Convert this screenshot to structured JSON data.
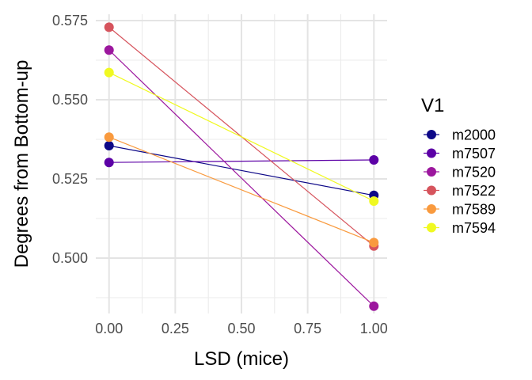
{
  "chart_data": {
    "type": "line",
    "xlabel": "LSD (mice)",
    "ylabel": "Degrees from Bottom-up",
    "x": [
      0,
      1
    ],
    "xticks": [
      0,
      0.25,
      0.5,
      0.75,
      1
    ],
    "xtick_labels": [
      "0.00",
      "0.25",
      "0.50",
      "0.75",
      "1.00"
    ],
    "yticks": [
      0.5,
      0.525,
      0.55,
      0.575
    ],
    "ytick_labels": [
      "0.500",
      "0.525",
      "0.550",
      "0.575"
    ],
    "xlim": [
      -0.05,
      1.05
    ],
    "ylim": [
      0.4825,
      0.577
    ],
    "grid": true,
    "legend": {
      "title": "V1",
      "position": "right"
    },
    "series": [
      {
        "name": "m2000",
        "color": "#0D0887",
        "values": [
          0.5355,
          0.5198
        ]
      },
      {
        "name": "m7507",
        "color": "#5C01A6",
        "values": [
          0.5302,
          0.531
        ]
      },
      {
        "name": "m7520",
        "color": "#9C179E",
        "values": [
          0.5657,
          0.4848
        ]
      },
      {
        "name": "m7522",
        "color": "#D6545D",
        "values": [
          0.5729,
          0.5038
        ]
      },
      {
        "name": "m7589",
        "color": "#F99A3E",
        "values": [
          0.5382,
          0.5049
        ]
      },
      {
        "name": "m7594",
        "color": "#F0F921",
        "values": [
          0.5586,
          0.518
        ]
      }
    ]
  }
}
